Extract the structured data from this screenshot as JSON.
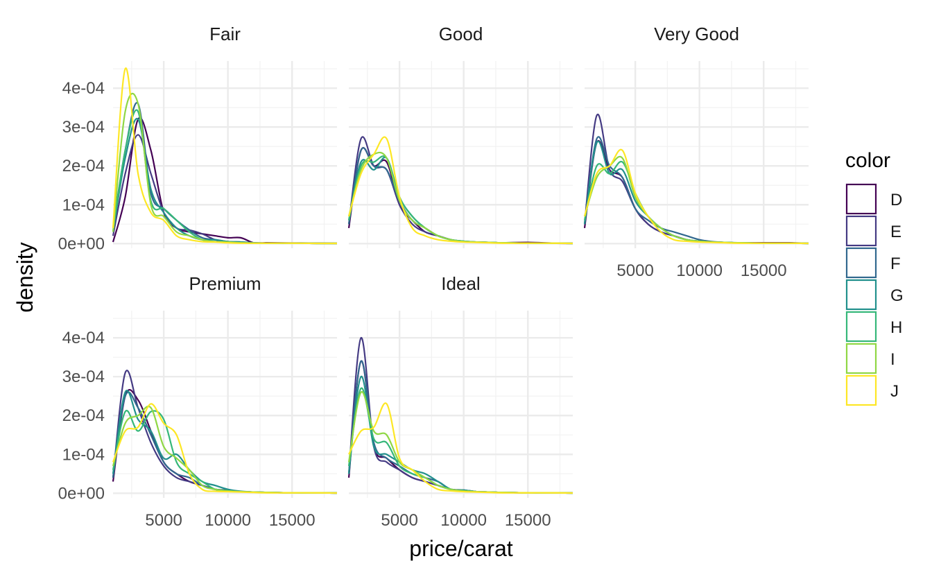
{
  "chart_data": {
    "type": "line",
    "subtype": "density",
    "facet_by": "cut",
    "xlabel": "price/carat",
    "ylabel": "density",
    "xlim": [
      1050,
      18500
    ],
    "ylim": [
      -1.2e-05,
      0.00047
    ],
    "x_ticks": [
      5000,
      10000,
      15000
    ],
    "x_tick_labels": [
      "5000",
      "10000",
      "15000"
    ],
    "y_ticks": [
      0,
      0.0001,
      0.0002,
      0.0003,
      0.0004
    ],
    "y_tick_labels": [
      "0e+00",
      "1e-04",
      "2e-04",
      "3e-04",
      "4e-04"
    ],
    "grid": true,
    "legend": {
      "title": "color",
      "position": "right",
      "entries": [
        {
          "label": "D",
          "color": "#440154"
        },
        {
          "label": "E",
          "color": "#443A83"
        },
        {
          "label": "F",
          "color": "#31688E"
        },
        {
          "label": "G",
          "color": "#21908C"
        },
        {
          "label": "H",
          "color": "#35B779"
        },
        {
          "label": "I",
          "color": "#8FD744"
        },
        {
          "label": "J",
          "color": "#FDE725"
        }
      ]
    },
    "x": [
      1050,
      2000,
      3000,
      4000,
      5000,
      6000,
      7000,
      8000,
      9000,
      10000,
      11000,
      12000,
      13000,
      15000,
      17000,
      18500
    ],
    "facets": [
      {
        "name": "Fair",
        "series": [
          {
            "name": "D",
            "values": [
              4e-06,
              0.00012,
              0.00032,
              0.00024,
              8e-05,
              4e-05,
              3e-05,
              2.5e-05,
              2e-05,
              1.5e-05,
              1.5e-05,
              2e-06,
              2e-06,
              1.5e-06,
              1e-06,
              5e-07
            ]
          },
          {
            "name": "E",
            "values": [
              2e-05,
              0.00018,
              0.00028,
              0.00018,
              8e-05,
              4e-05,
              3.5e-05,
              2.5e-05,
              1e-05,
              5e-06,
              4e-06,
              2e-06,
              1e-06,
              1e-06,
              5e-07,
              5e-07
            ]
          },
          {
            "name": "F",
            "values": [
              4e-05,
              0.00024,
              0.00036,
              0.00013,
              9e-05,
              6e-05,
              3.5e-05,
              1.5e-05,
              1e-05,
              5e-06,
              4e-06,
              2e-06,
              1e-06,
              1e-06,
              5e-07,
              5e-07
            ]
          },
          {
            "name": "G",
            "values": [
              3e-05,
              0.00022,
              0.00032,
              0.00014,
              8e-05,
              4e-05,
              2e-05,
              1e-05,
              1e-05,
              5e-06,
              4e-06,
              2e-06,
              1e-06,
              1e-06,
              5e-07,
              5e-07
            ]
          },
          {
            "name": "H",
            "values": [
              3e-05,
              0.00024,
              0.00034,
              0.00011,
              9e-05,
              6e-05,
              3e-05,
              1e-05,
              5e-06,
              4e-06,
              2e-06,
              1e-06,
              1e-06,
              1e-06,
              5e-07,
              5e-07
            ]
          },
          {
            "name": "I",
            "values": [
              3e-05,
              0.00034,
              0.00036,
              0.0001,
              7e-05,
              3e-05,
              2e-05,
              1e-05,
              5e-06,
              4e-06,
              2e-06,
              1e-06,
              1e-06,
              1e-06,
              5e-07,
              5e-07
            ]
          },
          {
            "name": "J",
            "values": [
              4e-05,
              0.00045,
              0.00018,
              8e-05,
              6e-05,
              2e-05,
              1e-05,
              5e-06,
              4e-06,
              2e-06,
              1e-06,
              1e-06,
              1e-06,
              1e-06,
              5e-07,
              5e-07
            ]
          }
        ]
      },
      {
        "name": "Good",
        "series": [
          {
            "name": "D",
            "values": [
              4e-05,
              0.00024,
              0.0002,
              0.00021,
              0.0001,
              6e-05,
              3e-05,
              2e-05,
              1e-05,
              5e-06,
              4e-06,
              3e-06,
              2e-06,
              3e-06,
              1e-06,
              5e-07
            ]
          },
          {
            "name": "E",
            "values": [
              5e-05,
              0.00027,
              0.0002,
              0.00019,
              0.0001,
              5e-05,
              3e-05,
              2e-05,
              1e-05,
              5e-06,
              4e-06,
              3e-06,
              2e-06,
              1e-06,
              1e-06,
              5e-07
            ]
          },
          {
            "name": "F",
            "values": [
              5e-05,
              0.00024,
              0.0002,
              0.00019,
              0.00011,
              6e-05,
              4e-05,
              2e-05,
              1e-05,
              6e-06,
              4e-06,
              3e-06,
              2e-06,
              1e-06,
              1e-06,
              5e-07
            ]
          },
          {
            "name": "G",
            "values": [
              6e-05,
              0.00021,
              0.00019,
              0.00022,
              0.00012,
              7e-05,
              4e-05,
              2e-05,
              1e-05,
              6e-06,
              4e-06,
              3e-06,
              2e-06,
              1e-06,
              1e-06,
              5e-07
            ]
          },
          {
            "name": "H",
            "values": [
              6e-05,
              0.0002,
              0.00021,
              0.00022,
              0.00012,
              7e-05,
              4e-05,
              2e-05,
              1e-05,
              6e-06,
              4e-06,
              3e-06,
              2e-06,
              1e-06,
              1e-06,
              5e-07
            ]
          },
          {
            "name": "I",
            "values": [
              7e-05,
              0.00019,
              0.00023,
              0.00022,
              0.00011,
              6e-05,
              4e-05,
              2e-05,
              1e-05,
              5e-06,
              4e-06,
              3e-06,
              2e-06,
              1e-06,
              1e-06,
              5e-07
            ]
          },
          {
            "name": "J",
            "values": [
              7e-05,
              0.00018,
              0.00023,
              0.00027,
              0.00012,
              4e-05,
              2e-05,
              1e-05,
              6e-06,
              4e-06,
              3e-06,
              2e-06,
              1e-06,
              1e-06,
              1e-06,
              5e-07
            ]
          }
        ]
      },
      {
        "name": "Very Good",
        "series": [
          {
            "name": "D",
            "values": [
              4e-05,
              0.00026,
              0.00019,
              0.00017,
              9e-05,
              5e-05,
              3e-05,
              2e-05,
              1e-05,
              6e-06,
              4e-06,
              3e-06,
              2e-06,
              2e-06,
              2e-06,
              5e-07
            ]
          },
          {
            "name": "E",
            "values": [
              5e-05,
              0.00033,
              0.00019,
              0.00016,
              9e-05,
              5e-05,
              3e-05,
              2e-05,
              1e-05,
              6e-06,
              4e-06,
              3e-06,
              2e-06,
              1e-06,
              1e-06,
              5e-07
            ]
          },
          {
            "name": "F",
            "values": [
              5e-05,
              0.00027,
              0.0002,
              0.00017,
              9e-05,
              6e-05,
              4e-05,
              3e-05,
              2e-05,
              1e-05,
              5e-06,
              3e-06,
              2e-06,
              1e-06,
              1e-06,
              5e-07
            ]
          },
          {
            "name": "G",
            "values": [
              5e-05,
              0.00026,
              0.00018,
              0.00019,
              0.00011,
              7e-05,
              4e-05,
              2e-05,
              1e-05,
              6e-06,
              4e-06,
              3e-06,
              2e-06,
              1e-06,
              1e-06,
              5e-07
            ]
          },
          {
            "name": "H",
            "values": [
              6e-05,
              0.0002,
              0.00018,
              0.00021,
              0.00013,
              7e-05,
              4e-05,
              2e-05,
              1e-05,
              6e-06,
              4e-06,
              3e-06,
              2e-06,
              1e-06,
              1e-06,
              5e-07
            ]
          },
          {
            "name": "I",
            "values": [
              7e-05,
              0.00017,
              0.0002,
              0.00022,
              0.00012,
              7e-05,
              4e-05,
              2e-05,
              1e-05,
              6e-06,
              4e-06,
              3e-06,
              2e-06,
              1e-06,
              1e-06,
              5e-07
            ]
          },
          {
            "name": "J",
            "values": [
              7e-05,
              0.00018,
              0.0002,
              0.00024,
              0.00013,
              7e-05,
              3e-05,
              1e-05,
              6e-06,
              4e-06,
              3e-06,
              2e-06,
              1e-06,
              1e-06,
              1e-06,
              5e-07
            ]
          }
        ]
      },
      {
        "name": "Premium",
        "series": [
          {
            "name": "D",
            "values": [
              3e-05,
              0.00025,
              0.00024,
              0.00016,
              8e-05,
              5e-05,
              3e-05,
              2e-05,
              1e-05,
              8e-06,
              4e-06,
              3e-06,
              2e-06,
              1e-06,
              1e-06,
              5e-07
            ]
          },
          {
            "name": "E",
            "values": [
              4e-05,
              0.00031,
              0.00022,
              0.00013,
              7e-05,
              4e-05,
              3e-05,
              2e-05,
              1e-05,
              6e-06,
              4e-06,
              3e-06,
              2e-06,
              1e-06,
              1e-06,
              5e-07
            ]
          },
          {
            "name": "F",
            "values": [
              4e-05,
              0.00025,
              0.00022,
              0.00015,
              8e-05,
              5e-05,
              4e-05,
              2e-05,
              1e-05,
              8e-06,
              4e-06,
              3e-06,
              2e-06,
              1e-06,
              1e-06,
              5e-07
            ]
          },
          {
            "name": "G",
            "values": [
              5e-05,
              0.00026,
              0.00019,
              0.00016,
              9e-05,
              0.0001,
              6e-05,
              3e-05,
              2e-05,
              1e-05,
              5e-06,
              3e-06,
              2e-06,
              1e-06,
              1e-06,
              5e-07
            ]
          },
          {
            "name": "H",
            "values": [
              6e-05,
              0.00021,
              0.00016,
              0.00021,
              0.00019,
              8e-05,
              5e-05,
              3e-05,
              1e-05,
              6e-06,
              4e-06,
              3e-06,
              2e-06,
              1e-06,
              1e-06,
              5e-07
            ]
          },
          {
            "name": "I",
            "values": [
              7e-05,
              0.00018,
              0.0002,
              0.00022,
              0.00012,
              9e-05,
              6e-05,
              2e-05,
              1e-05,
              6e-06,
              4e-06,
              3e-06,
              2e-06,
              1e-06,
              1e-06,
              5e-07
            ]
          },
          {
            "name": "J",
            "values": [
              8e-05,
              0.00016,
              0.00017,
              0.00023,
              0.00018,
              0.00015,
              5e-05,
              1e-05,
              5e-06,
              4e-06,
              3e-06,
              2e-06,
              1e-06,
              1e-06,
              1e-06,
              5e-07
            ]
          }
        ]
      },
      {
        "name": "Ideal",
        "series": [
          {
            "name": "D",
            "values": [
              4e-05,
              0.00034,
              0.00012,
              9e-05,
              6e-05,
              4e-05,
              3e-05,
              2e-05,
              1e-05,
              8e-06,
              4e-06,
              3e-06,
              2e-06,
              1e-06,
              1e-06,
              5e-07
            ]
          },
          {
            "name": "E",
            "values": [
              5e-05,
              0.0004,
              0.00012,
              8e-05,
              6e-05,
              4e-05,
              3e-05,
              2e-05,
              1e-05,
              6e-06,
              4e-06,
              3e-06,
              2e-06,
              1e-06,
              1e-06,
              5e-07
            ]
          },
          {
            "name": "F",
            "values": [
              5e-05,
              0.00034,
              0.00013,
              9e-05,
              7e-05,
              5e-05,
              4e-05,
              3e-05,
              1e-05,
              8e-06,
              4e-06,
              3e-06,
              2e-06,
              1e-06,
              1e-06,
              5e-07
            ]
          },
          {
            "name": "G",
            "values": [
              5e-05,
              0.0003,
              0.00012,
              0.0001,
              8e-05,
              6e-05,
              5e-05,
              3e-05,
              1e-05,
              8e-06,
              4e-06,
              3e-06,
              2e-06,
              1e-06,
              1e-06,
              5e-07
            ]
          },
          {
            "name": "H",
            "values": [
              7e-05,
              0.00027,
              0.00014,
              0.00013,
              7e-05,
              5e-05,
              4e-05,
              2e-05,
              1e-05,
              6e-06,
              4e-06,
              3e-06,
              2e-06,
              1e-06,
              1e-06,
              5e-07
            ]
          },
          {
            "name": "I",
            "values": [
              8e-05,
              0.00026,
              0.00016,
              0.00015,
              8e-05,
              6e-05,
              4e-05,
              2e-05,
              1e-05,
              6e-06,
              4e-06,
              3e-06,
              2e-06,
              1e-06,
              1e-06,
              5e-07
            ]
          },
          {
            "name": "J",
            "values": [
              0.0001,
              0.00016,
              0.00017,
              0.00023,
              9e-05,
              6e-05,
              3e-05,
              1e-05,
              6e-06,
              4e-06,
              3e-06,
              2e-06,
              1e-06,
              1e-06,
              1e-06,
              5e-07
            ]
          }
        ]
      }
    ]
  }
}
